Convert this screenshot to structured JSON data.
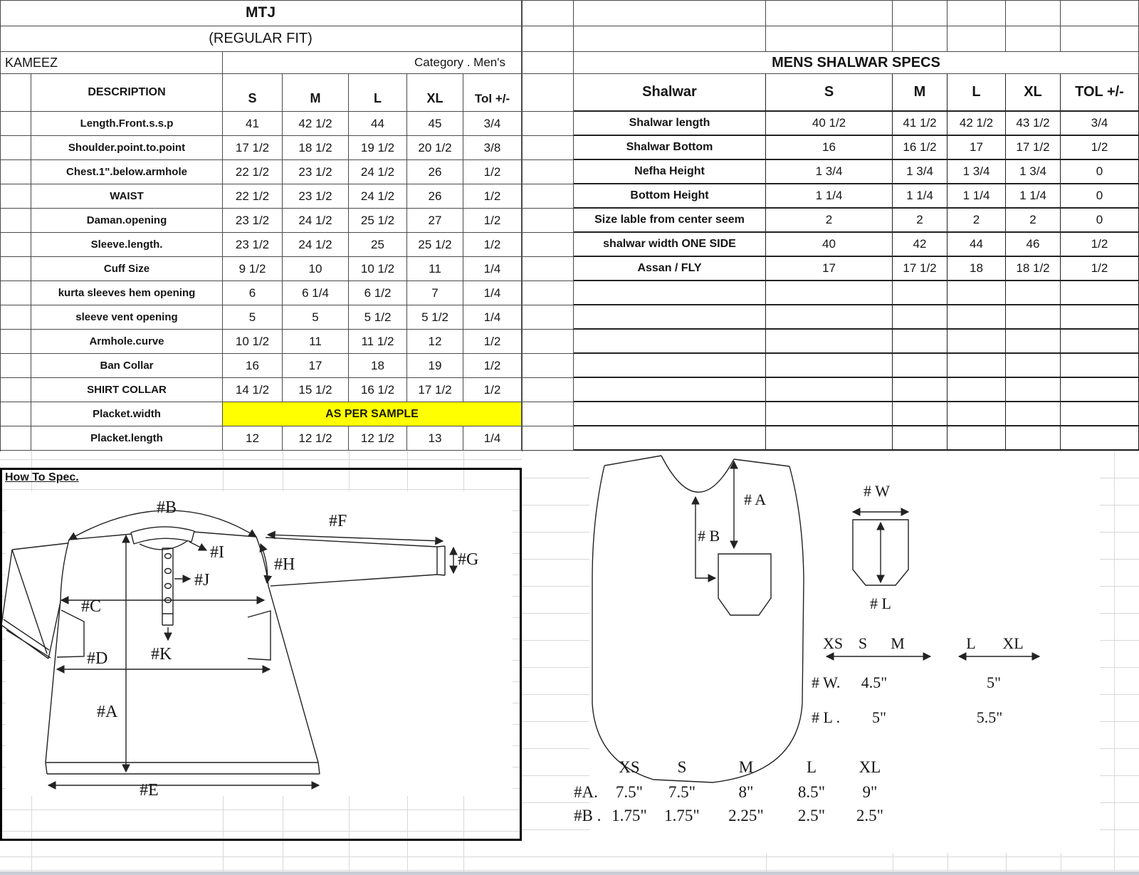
{
  "kameez_table": {
    "title": "MTJ",
    "subtitle": "(REGULAR FIT)",
    "name": "KAMEEZ",
    "category": "Category .  Men's",
    "description_header": "DESCRIPTION",
    "columns": [
      "S",
      "M",
      "L",
      "XL",
      "Tol +/-"
    ],
    "rows": [
      {
        "label": "Length.Front.s.s.p",
        "values": [
          "41",
          "42 1/2",
          "44",
          "45",
          "3/4"
        ]
      },
      {
        "label": "Shoulder.point.to.point",
        "values": [
          "17 1/2",
          "18 1/2",
          "19 1/2",
          "20 1/2",
          "3/8"
        ]
      },
      {
        "label": "Chest.1\".below.armhole",
        "values": [
          "22 1/2",
          "23 1/2",
          "24 1/2",
          "26",
          "1/2"
        ]
      },
      {
        "label": "WAIST",
        "values": [
          "22 1/2",
          "23 1/2",
          "24 1/2",
          "26",
          "1/2"
        ]
      },
      {
        "label": "Daman.opening",
        "values": [
          "23 1/2",
          "24 1/2",
          "25 1/2",
          "27",
          "1/2"
        ]
      },
      {
        "label": "Sleeve.length.",
        "values": [
          "23 1/2",
          "24 1/2",
          "25",
          "25 1/2",
          "1/2"
        ]
      },
      {
        "label": "Cuff Size",
        "values": [
          "9 1/2",
          "10",
          "10 1/2",
          "11",
          "1/4"
        ]
      },
      {
        "label": "kurta sleeves hem opening",
        "values": [
          "6",
          "6 1/4",
          "6 1/2",
          "7",
          "1/4"
        ]
      },
      {
        "label": "sleeve vent opening",
        "values": [
          "5",
          "5",
          "5 1/2",
          "5 1/2",
          "1/4"
        ]
      },
      {
        "label": "Armhole.curve",
        "values": [
          "10 1/2",
          "11",
          "11 1/2",
          "12",
          "1/2"
        ]
      },
      {
        "label": "Ban Collar",
        "values": [
          "16",
          "17",
          "18",
          "19",
          "1/2"
        ]
      },
      {
        "label": "SHIRT COLLAR",
        "values": [
          "14 1/2",
          "15 1/2",
          "16 1/2",
          "17 1/2",
          "1/2"
        ]
      },
      {
        "label": "Placket.width",
        "values": null,
        "highlight": "AS PER SAMPLE",
        "highlight_color": "#ffff00"
      },
      {
        "label": "Placket.length",
        "values": [
          "12",
          "12 1/2",
          "12 1/2",
          "13",
          "1/4"
        ]
      }
    ]
  },
  "shalwar_table": {
    "title": "MENS SHALWAR SPECS",
    "label_header": "Shalwar",
    "columns": [
      "S",
      "M",
      "L",
      "XL",
      "TOL +/-"
    ],
    "rows": [
      {
        "label": "Shalwar length",
        "values": [
          "40 1/2",
          "41 1/2",
          "42 1/2",
          "43 1/2",
          "3/4"
        ]
      },
      {
        "label": "Shalwar Bottom",
        "values": [
          "16",
          "16 1/2",
          "17",
          "17 1/2",
          "1/2"
        ]
      },
      {
        "label": "Nefha Height",
        "values": [
          "1 3/4",
          "1 3/4",
          "1 3/4",
          "1 3/4",
          "0"
        ]
      },
      {
        "label": "Bottom Height",
        "values": [
          "1 1/4",
          "1 1/4",
          "1 1/4",
          "1 1/4",
          "0"
        ]
      },
      {
        "label": "Size lable from center seem",
        "values": [
          "2",
          "2",
          "2",
          "2",
          "0"
        ]
      },
      {
        "label": "shalwar width ONE SIDE",
        "values": [
          "40",
          "42",
          "44",
          "46",
          "1/2"
        ]
      },
      {
        "label": "Assan / FLY",
        "values": [
          "17",
          "17 1/2",
          "18",
          "18 1/2",
          "1/2"
        ]
      }
    ],
    "empty_row_count": 7
  },
  "howto": {
    "heading": "How To Spec.",
    "labels": {
      "A": "#A",
      "B": "#B",
      "C": "#C",
      "D": "#D",
      "E": "#E",
      "F": "#F",
      "G": "#G",
      "H": "#H",
      "I": "#I",
      "J": "#J",
      "K": "#K"
    }
  },
  "shalwar_diagram": {
    "labels": {
      "A": "# A",
      "B": "# B",
      "W": "# W",
      "L": "# L"
    },
    "pocket_size_note": {
      "group1_sizes": [
        "XS",
        "S",
        "M"
      ],
      "group2_sizes": [
        "L",
        "XL"
      ],
      "rows": [
        {
          "label": "# W.",
          "group1": "4.5\"",
          "group2": "5\""
        },
        {
          "label": "# L .",
          "group1": "5\"",
          "group2": "5.5\""
        }
      ]
    },
    "bottom_table": {
      "sizes": [
        "XS",
        "S",
        "M",
        "L",
        "XL"
      ],
      "rows": [
        {
          "label": "#A.",
          "values": [
            "7.5\"",
            "7.5\"",
            "8\"",
            "8.5\"",
            "9\""
          ]
        },
        {
          "label": "#B .",
          "values": [
            "1.75\"",
            "1.75\"",
            "2.25\"",
            "2.5\"",
            "2.5\""
          ]
        }
      ]
    }
  }
}
